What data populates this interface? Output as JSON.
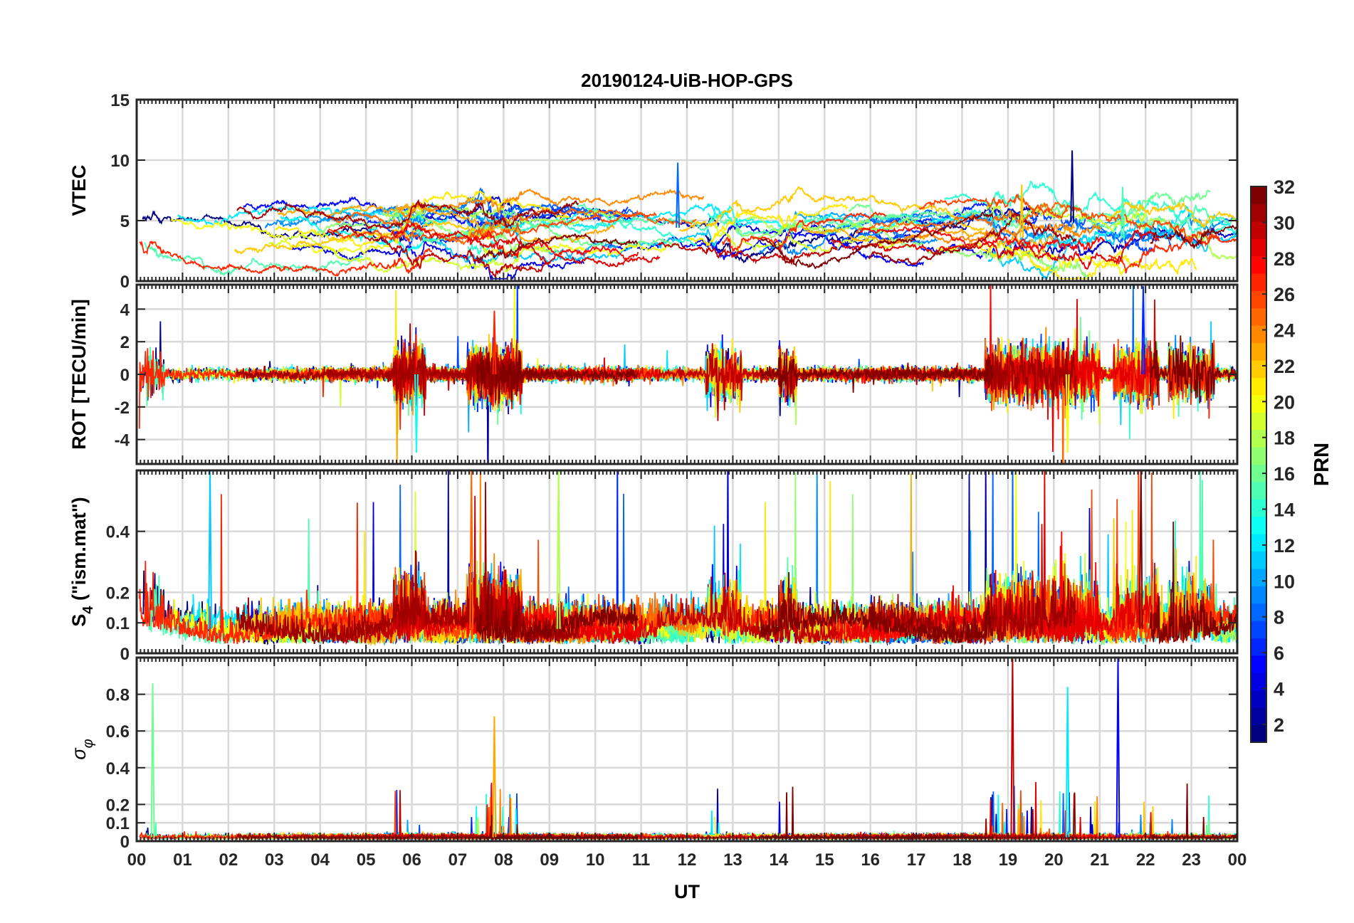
{
  "chart_data": {
    "type": "line",
    "title": "20190124-UiB-HOP-GPS",
    "xlabel": "UT",
    "x_tick_labels": [
      "00",
      "01",
      "02",
      "03",
      "04",
      "05",
      "06",
      "07",
      "08",
      "09",
      "10",
      "11",
      "12",
      "13",
      "14",
      "15",
      "16",
      "17",
      "18",
      "19",
      "20",
      "21",
      "22",
      "23",
      "00"
    ],
    "xlim": [
      0,
      24
    ],
    "colorbar": {
      "label": "PRN",
      "range": [
        1,
        32
      ],
      "tick_labels": [
        "2",
        "4",
        "6",
        "8",
        "10",
        "12",
        "14",
        "16",
        "18",
        "20",
        "22",
        "24",
        "26",
        "28",
        "30",
        "32"
      ],
      "colormap": "jet"
    },
    "series_description": "Per-satellite time series colored by PRN (1-32)",
    "panels": [
      {
        "name": "vtec",
        "ylabel": "VTEC",
        "ylim": [
          0,
          15
        ],
        "y_ticks": [
          0,
          5,
          10,
          15
        ],
        "y_tick_labels": [
          "0",
          "5",
          "10",
          "15"
        ],
        "typical_range": [
          0,
          8
        ],
        "peak_values": [
          {
            "x": 20.4,
            "y": 10.8
          },
          {
            "x": 11.8,
            "y": 9.8
          },
          {
            "x": 21.5,
            "y": 7.8
          },
          {
            "x": 19.3,
            "y": 8.0
          }
        ]
      },
      {
        "name": "rot",
        "ylabel": "ROT [TECU/min]",
        "ylim": [
          -5.5,
          5.5
        ],
        "y_ticks": [
          -4,
          -2,
          0,
          2,
          4
        ],
        "y_tick_labels": [
          "-4",
          "-2",
          "0",
          "2",
          "4"
        ],
        "peak_values": [
          {
            "x": 21.95,
            "y": 5.4
          },
          {
            "x": 6.1,
            "y": -4.8
          },
          {
            "x": 20.3,
            "y": -4.8
          },
          {
            "x": 7.8,
            "y": 3.9
          }
        ]
      },
      {
        "name": "s4",
        "ylabel_main": "S",
        "ylabel_sub": "4",
        "ylabel_rest": " (\"ism.mat\")",
        "ylim": [
          0,
          0.6
        ],
        "y_ticks": [
          0,
          0.1,
          0.2,
          0.4
        ],
        "y_tick_labels": [
          "0",
          "0.1",
          "0.2",
          "0.4"
        ],
        "peak_values": [
          {
            "x": 1.6,
            "y": 0.6
          },
          {
            "x": 9.2,
            "y": 0.6
          },
          {
            "x": 7.3,
            "y": 0.6
          },
          {
            "x": 21.9,
            "y": 0.6
          }
        ]
      },
      {
        "name": "sigma_phi",
        "ylabel_main": "σ",
        "ylabel_sub": "φ",
        "ylim": [
          0,
          1.0
        ],
        "y_ticks": [
          0,
          0.1,
          0.2,
          0.4,
          0.6,
          0.8
        ],
        "y_tick_labels": [
          "0",
          "0.1",
          "0.2",
          "0.4",
          "0.6",
          "0.8"
        ],
        "peak_values": [
          {
            "x": 0.35,
            "y": 0.86
          },
          {
            "x": 7.8,
            "y": 0.68
          },
          {
            "x": 19.1,
            "y": 1.0
          },
          {
            "x": 21.4,
            "y": 1.0
          },
          {
            "x": 20.3,
            "y": 0.84
          }
        ]
      }
    ]
  }
}
